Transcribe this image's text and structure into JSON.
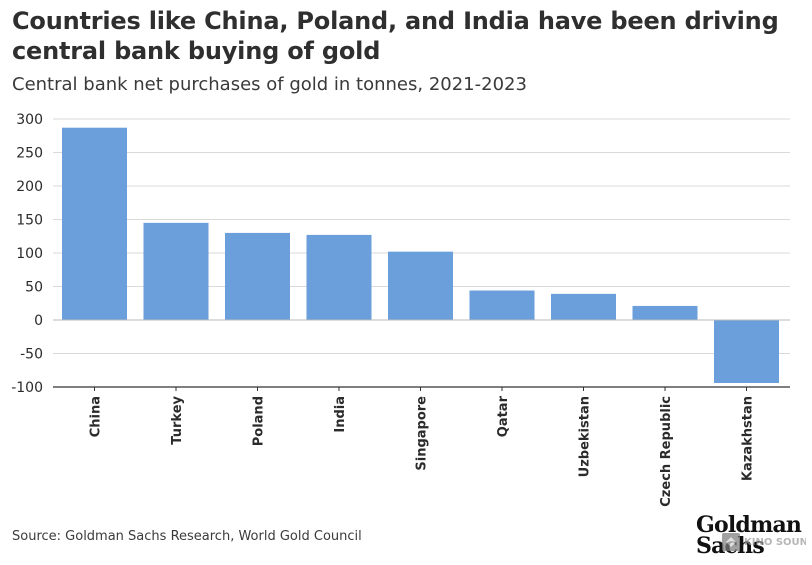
{
  "title": "Countries like China, Poland, and India have been driving central bank buying of gold",
  "subtitle": "Central bank net purchases of gold in tonnes, 2021-2023",
  "source": "Source: Goldman Sachs Research, World Gold Council",
  "logo": {
    "line1": "Goldman",
    "line2": "Sachs"
  },
  "watermark": {
    "text": "KINO SOUND"
  },
  "colors": {
    "bar": "#6A9FDB",
    "grid": "#D9D9D9",
    "axis": "#333333",
    "text": "#2B2B2B"
  },
  "chart_data": {
    "type": "bar",
    "title": "",
    "xlabel": "",
    "ylabel": "",
    "categories": [
      "China",
      "Turkey",
      "Poland",
      "India",
      "Singapore",
      "Qatar",
      "Uzbekistan",
      "Czech Republic",
      "Kazakhstan"
    ],
    "values": [
      287,
      145,
      130,
      127,
      102,
      44,
      39,
      21,
      -94
    ],
    "ylim": [
      -100,
      300
    ],
    "yticks": [
      300,
      250,
      200,
      150,
      100,
      50,
      0,
      -50,
      -100
    ],
    "grid": true,
    "legend": "none"
  }
}
